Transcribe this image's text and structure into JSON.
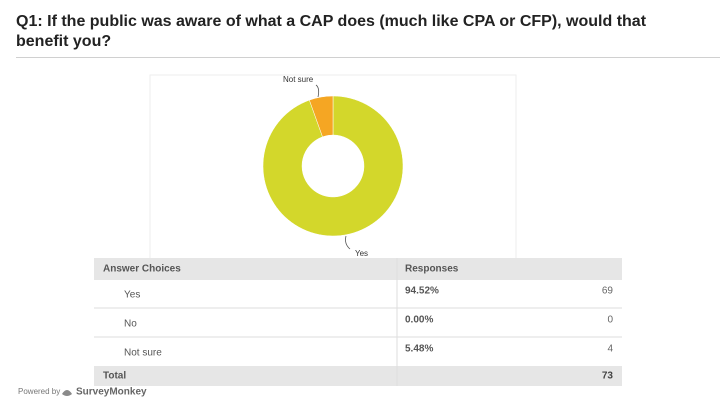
{
  "chart_data": {
    "type": "pie",
    "donut": true,
    "title": "Q1: If the public was aware of what a CAP does (much like CPA or CFP), would that benefit you?",
    "categories": [
      "Yes",
      "No",
      "Not sure"
    ],
    "values": [
      94.52,
      0.0,
      5.48
    ],
    "value_labels": [
      "94.52%",
      "0.00%",
      "5.48%"
    ],
    "colors": [
      "#d3d72b",
      "#8dc63f",
      "#f5a623"
    ]
  },
  "table": {
    "headers": [
      "Answer Choices",
      "Responses"
    ],
    "counts": [
      69,
      0,
      4
    ],
    "total_label": "Total",
    "total": 73
  },
  "footer": {
    "powered_by": "Powered by",
    "brand": "SurveyMonkey"
  }
}
